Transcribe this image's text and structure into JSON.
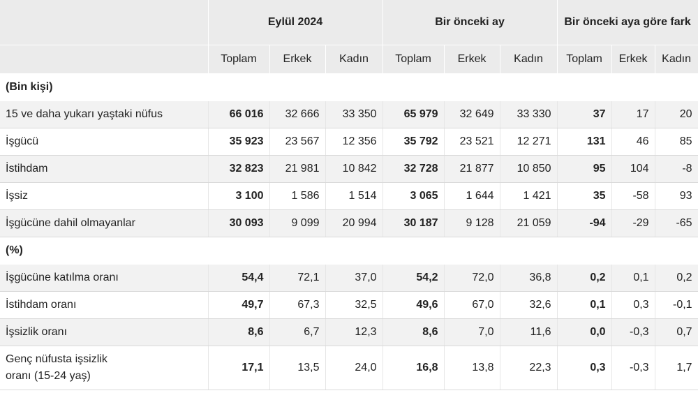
{
  "headers": {
    "group1": "Eylül 2024",
    "group2": "Bir önceki ay",
    "group3": "Bir önceki aya göre fark",
    "sub": [
      "Toplam",
      "Erkek",
      "Kadın",
      "Toplam",
      "Erkek",
      "Kadın",
      "Toplam",
      "Erkek",
      "Kadın"
    ]
  },
  "sections": [
    {
      "title": "(Bin kişi)",
      "rows": [
        {
          "label": "15 ve daha yukarı yaştaki nüfus",
          "values": [
            "66 016",
            "32 666",
            "33 350",
            "65 979",
            "32 649",
            "33 330",
            "37",
            "17",
            "20"
          ]
        },
        {
          "label": "İşgücü",
          "values": [
            "35 923",
            "23 567",
            "12 356",
            "35 792",
            "23 521",
            "12 271",
            "131",
            "46",
            "85"
          ]
        },
        {
          "label": "İstihdam",
          "values": [
            "32 823",
            "21 981",
            "10 842",
            "32 728",
            "21 877",
            "10 850",
            "95",
            "104",
            "-8"
          ]
        },
        {
          "label": "İşsiz",
          "values": [
            "3 100",
            "1 586",
            "1 514",
            "3 065",
            "1 644",
            "1 421",
            "35",
            "-58",
            "93"
          ]
        },
        {
          "label": "İşgücüne dahil olmayanlar",
          "values": [
            "30 093",
            "9 099",
            "20 994",
            "30 187",
            "9 128",
            "21 059",
            "-94",
            "-29",
            "-65"
          ]
        }
      ]
    },
    {
      "title": "(%)",
      "rows": [
        {
          "label": "İşgücüne katılma oranı",
          "values": [
            "54,4",
            "72,1",
            "37,0",
            "54,2",
            "72,0",
            "36,8",
            "0,2",
            "0,1",
            "0,2"
          ]
        },
        {
          "label": "İstihdam oranı",
          "values": [
            "49,7",
            "67,3",
            "32,5",
            "49,6",
            "67,0",
            "32,6",
            "0,1",
            "0,3",
            "-0,1"
          ]
        },
        {
          "label": "İşsizlik oranı",
          "values": [
            "8,6",
            "6,7",
            "12,3",
            "8,6",
            "7,0",
            "11,6",
            "0,0",
            "-0,3",
            "0,7"
          ]
        },
        {
          "label": "Genç nüfusta işsizlik oranı (15-24 yaş)",
          "values": [
            "17,1",
            "13,5",
            "24,0",
            "16,8",
            "13,8",
            "22,3",
            "0,3",
            "-0,3",
            "1,7"
          ]
        }
      ]
    }
  ]
}
